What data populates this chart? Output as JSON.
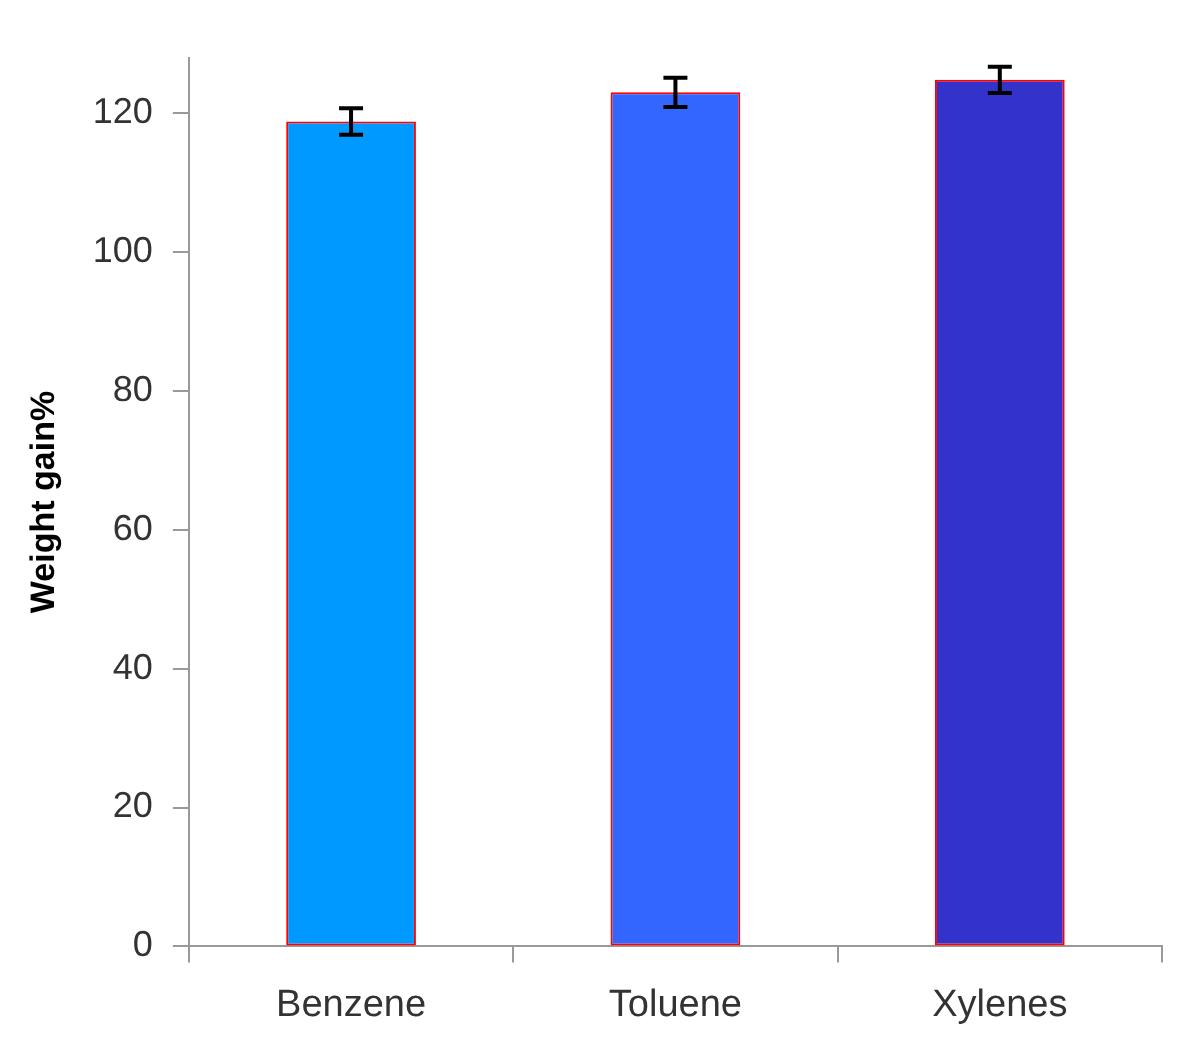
{
  "chart_data": {
    "type": "bar",
    "ylabel": "Weight gain%",
    "categories": [
      "Benzene",
      "Toluene",
      "Xylenes"
    ],
    "values": [
      118.8,
      123.0,
      124.8
    ],
    "errors": [
      1.9,
      2.1,
      1.9
    ],
    "colors": [
      "#0099ff",
      "#3366ff",
      "#3333cc"
    ],
    "ylim": [
      0,
      128
    ],
    "yticks": [
      0,
      20,
      40,
      60,
      80,
      100,
      120
    ],
    "grid": false,
    "legend": false
  }
}
